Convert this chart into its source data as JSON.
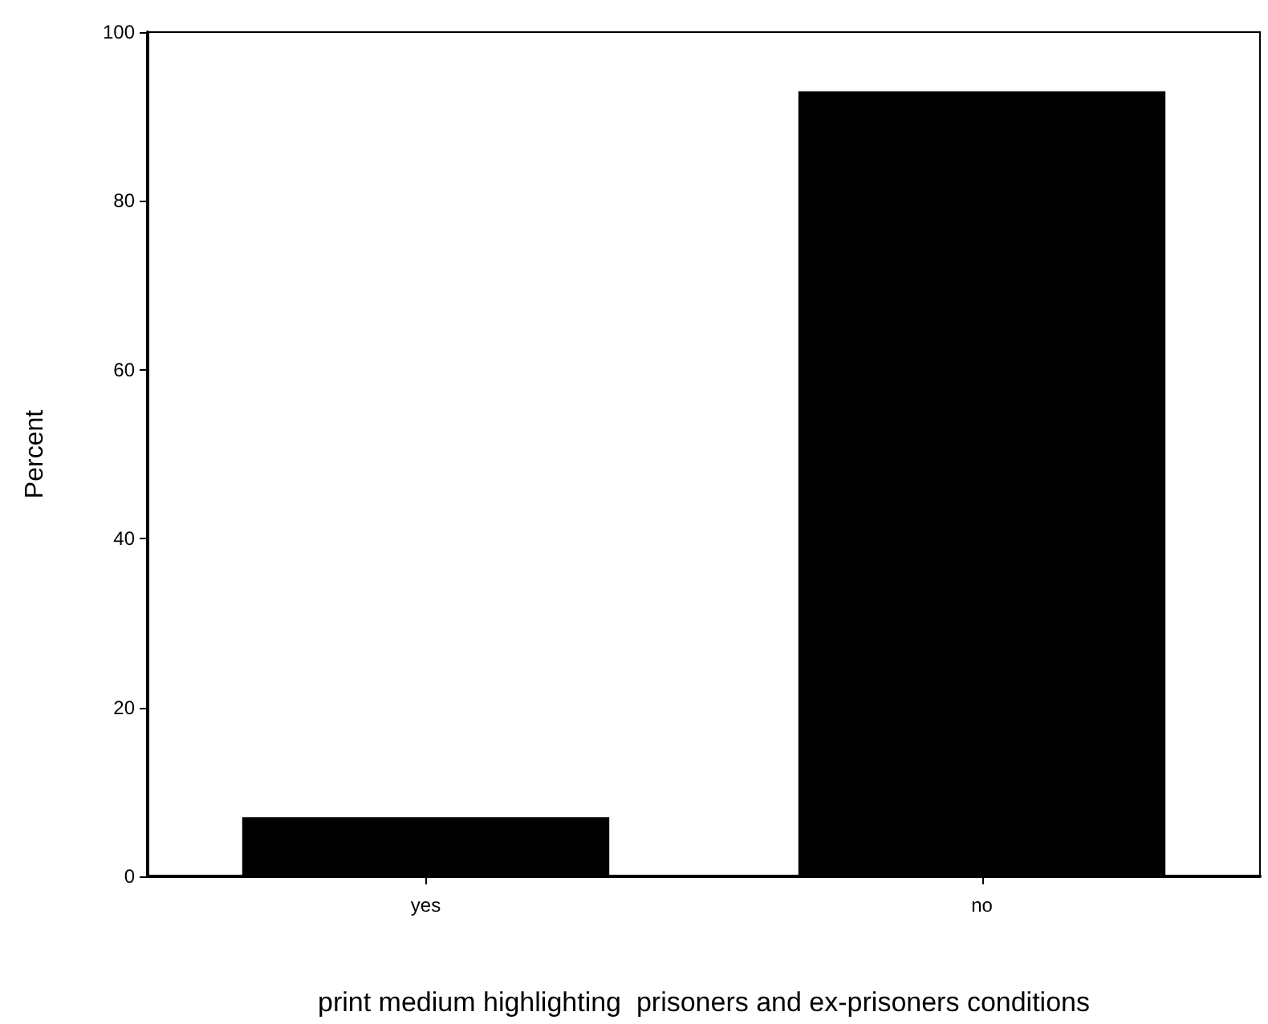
{
  "chart_data": {
    "type": "bar",
    "xlabel": "print medium highlighting  prisoners and ex-prisoners conditions",
    "ylabel": "Percent",
    "categories": [
      "yes",
      "no"
    ],
    "values": [
      7,
      93
    ],
    "color": "#000000",
    "ylim": [
      0,
      100
    ],
    "yticks": [
      0,
      20,
      40,
      60,
      80,
      100
    ],
    "grid": false
  }
}
